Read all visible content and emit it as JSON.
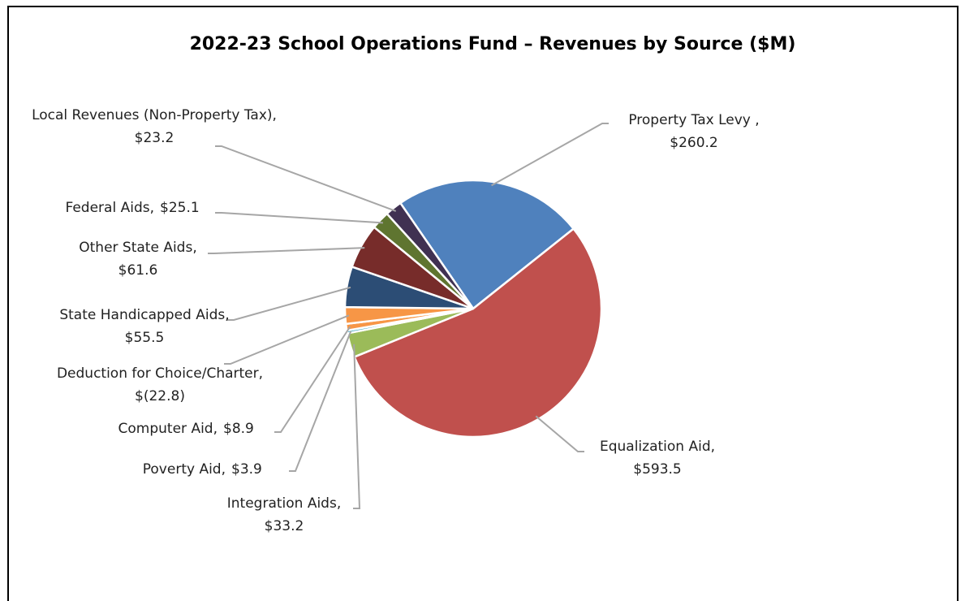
{
  "chart_data": {
    "type": "pie",
    "title": "2022-23 School Operations Fund – Revenues by Source ($M)",
    "categories": [
      "Property Tax Levy ,",
      "Equalization Aid,",
      "Integration Aids,",
      "Poverty Aid,",
      "Computer Aid,",
      "Deduction for Choice/Charter,",
      "State Handicapped Aids,",
      "Other State Aids,",
      "Federal Aids,",
      "Local Revenues (Non-Property Tax),"
    ],
    "values": [
      260.2,
      593.5,
      33.2,
      3.9,
      8.9,
      -22.8,
      55.5,
      61.6,
      25.1,
      23.2
    ],
    "value_labels": [
      "$260.2",
      "$593.5",
      "$33.2",
      "$3.9",
      "$8.9",
      "$(22.8)",
      "$55.5",
      "$61.6",
      "$25.1",
      "$23.2"
    ],
    "colors": [
      "#4f81bd",
      "#c0504d",
      "#9bbb59",
      "#4bacc6",
      "#f79646",
      "#f79646",
      "#2c4d75",
      "#772c2a",
      "#5f7530",
      "#403152"
    ]
  }
}
